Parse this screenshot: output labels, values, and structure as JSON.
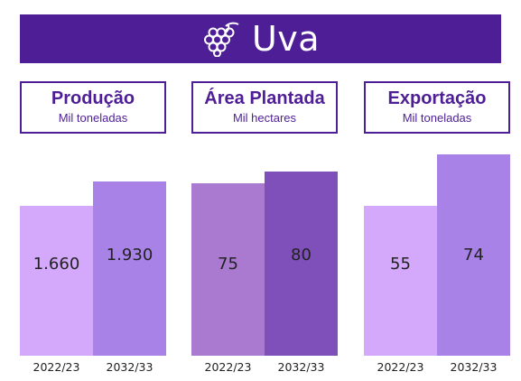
{
  "header": {
    "title": "Uva",
    "icon": "grapes-icon"
  },
  "chart_data": [
    {
      "type": "bar",
      "title": "Produção",
      "subtitle": "Mil toneladas",
      "categories": [
        "2022/23",
        "2032/33"
      ],
      "values": [
        1660,
        1930
      ],
      "value_labels": [
        "1.660",
        "1.930"
      ],
      "colors": [
        "#d4a8fb",
        "#a882e6"
      ],
      "ylim": [
        0,
        2368
      ]
    },
    {
      "type": "bar",
      "title": "Área Plantada",
      "subtitle": "Mil hectares",
      "categories": [
        "2022/23",
        "2032/33"
      ],
      "values": [
        75,
        80
      ],
      "value_labels": [
        "75",
        "80"
      ],
      "colors": [
        "#a97ad0",
        "#7f4fba"
      ],
      "ylim": [
        0,
        92.9
      ]
    },
    {
      "type": "bar",
      "title": "Exportação",
      "subtitle": "Mil toneladas",
      "categories": [
        "2022/23",
        "2032/33"
      ],
      "values": [
        55,
        74
      ],
      "value_labels": [
        "55",
        "74"
      ],
      "colors": [
        "#d4a8fb",
        "#a882e6"
      ],
      "ylim": [
        0,
        78.5
      ]
    }
  ]
}
